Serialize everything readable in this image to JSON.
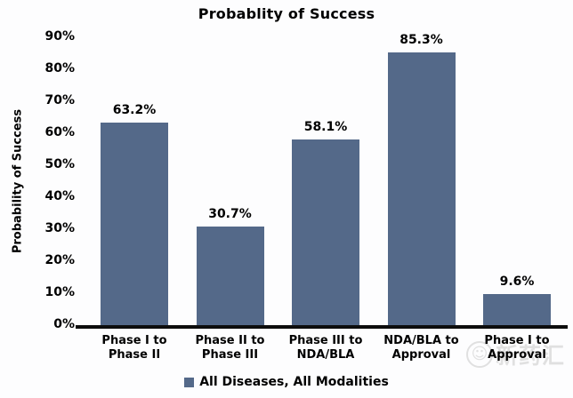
{
  "title": "Probablity of Success",
  "chart_data": {
    "type": "bar",
    "title": "Probablity of Success",
    "xlabel": "",
    "ylabel": "Probability of Success",
    "ylim": [
      0,
      90
    ],
    "grid": false,
    "legend_position": "bottom",
    "ytick_labels": [
      "0%",
      "10%",
      "20%",
      "30%",
      "40%",
      "50%",
      "60%",
      "70%",
      "80%",
      "90%"
    ],
    "categories": [
      "Phase I to\nPhase II",
      "Phase II to\nPhase III",
      "Phase III to\nNDA/BLA",
      "NDA/BLA to\nApproval",
      "Phase I to\nApproval"
    ],
    "series": [
      {
        "name": "All Diseases, All Modalities",
        "color": "#546989",
        "values": [
          63.2,
          30.7,
          58.1,
          85.3,
          9.6
        ],
        "value_labels": [
          "63.2%",
          "30.7%",
          "58.1%",
          "85.3%",
          "9.6%"
        ]
      }
    ]
  },
  "legend": {
    "label": "All Diseases, All Modalities",
    "swatch_color": "#546989"
  },
  "watermark": {
    "text": "新药汇"
  },
  "colors": {
    "bar": "#546989",
    "axis": "#0d0d0d",
    "text": "#000000",
    "background": "#fdfdfe",
    "watermark": "#c4c4c4"
  }
}
